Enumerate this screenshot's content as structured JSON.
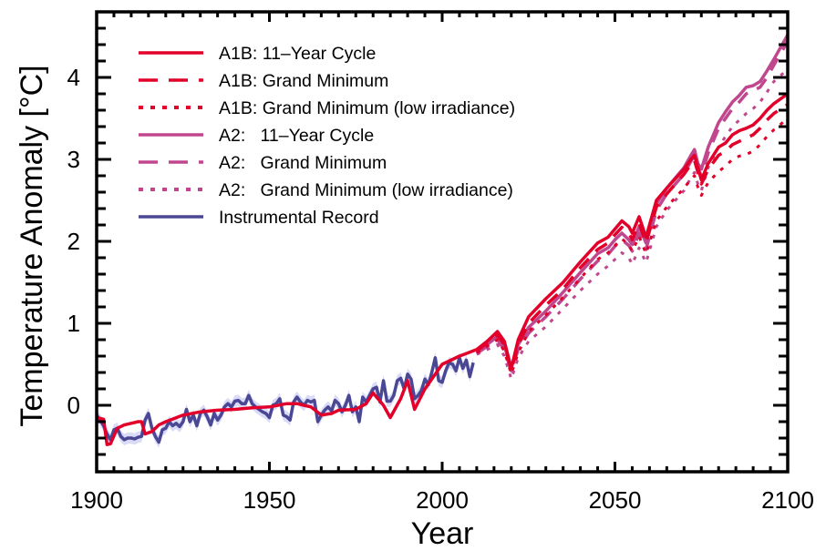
{
  "chart_data": {
    "type": "line",
    "title": "",
    "xlabel": "Year",
    "ylabel": "Temperature Anomaly [°C]",
    "xlim": [
      1900,
      2100
    ],
    "ylim": [
      -0.8,
      4.8
    ],
    "xticks": [
      1900,
      1950,
      2000,
      2050,
      2100
    ],
    "xtick_labels": [
      "1900",
      "1950",
      "2000",
      "2050",
      "2100"
    ],
    "x_minor_step": 5,
    "yticks": [
      0,
      1,
      2,
      3,
      4
    ],
    "ytick_labels": [
      "0",
      "1",
      "2",
      "3",
      "4"
    ],
    "y_minor_step": 0.2,
    "grid": false,
    "legend_position": "top-left",
    "colors": {
      "a1b": "#E2002A",
      "a2": "#C0478E",
      "instrumental": "#4A4794",
      "instrumental_band": "#B9BDF0"
    },
    "series": [
      {
        "name": "A1B: 11–Year Cycle",
        "color_key": "a1b",
        "style": "solid",
        "x": [
          1900,
          1902,
          1903,
          1904,
          1906,
          1908,
          1910,
          1912,
          1913,
          1914,
          1916,
          1918,
          1920,
          1925,
          1930,
          1935,
          1940,
          1945,
          1950,
          1955,
          1958,
          1960,
          1962,
          1965,
          1968,
          1970,
          1975,
          1978,
          1980,
          1983,
          1985,
          1988,
          1990,
          1992,
          1995,
          2000,
          2005,
          2010,
          2013,
          2016,
          2018,
          2020,
          2022,
          2025,
          2030,
          2035,
          2040,
          2045,
          2048,
          2050,
          2052,
          2054,
          2055,
          2057,
          2059,
          2062,
          2065,
          2070,
          2072,
          2073,
          2074,
          2075,
          2077,
          2080,
          2082,
          2084,
          2086,
          2088,
          2090,
          2092,
          2094,
          2096,
          2100
        ],
        "y": [
          -0.15,
          -0.17,
          -0.48,
          -0.47,
          -0.28,
          -0.24,
          -0.22,
          -0.2,
          -0.2,
          -0.35,
          -0.32,
          -0.24,
          -0.2,
          -0.12,
          -0.08,
          -0.06,
          -0.05,
          -0.03,
          -0.02,
          0.02,
          0.02,
          0.0,
          -0.02,
          -0.12,
          -0.1,
          -0.06,
          -0.05,
          0.02,
          0.15,
          0.0,
          -0.15,
          0.08,
          0.3,
          -0.05,
          0.2,
          0.5,
          0.6,
          0.68,
          0.78,
          0.9,
          0.78,
          0.45,
          0.8,
          1.08,
          1.3,
          1.5,
          1.75,
          1.98,
          2.05,
          2.15,
          2.25,
          2.18,
          2.1,
          2.3,
          2.05,
          2.5,
          2.65,
          2.88,
          3.0,
          3.05,
          2.9,
          2.75,
          2.95,
          3.15,
          3.2,
          3.3,
          3.35,
          3.38,
          3.42,
          3.5,
          3.6,
          3.68,
          3.8
        ]
      },
      {
        "name": "A1B: Grand Minimum",
        "color_key": "a1b",
        "style": "dashed",
        "x": [
          2010,
          2013,
          2016,
          2018,
          2020,
          2022,
          2025,
          2030,
          2035,
          2040,
          2045,
          2048,
          2050,
          2052,
          2054,
          2055,
          2057,
          2059,
          2062,
          2065,
          2070,
          2072,
          2073,
          2074,
          2075,
          2077,
          2080,
          2082,
          2084,
          2086,
          2088,
          2090,
          2092,
          2094,
          2096,
          2100
        ],
        "y": [
          0.66,
          0.76,
          0.86,
          0.74,
          0.43,
          0.74,
          1.0,
          1.22,
          1.42,
          1.68,
          1.9,
          1.98,
          2.08,
          2.17,
          2.1,
          2.02,
          2.22,
          1.98,
          2.42,
          2.58,
          2.82,
          2.94,
          2.99,
          2.84,
          2.7,
          2.88,
          3.05,
          3.1,
          3.18,
          3.22,
          3.26,
          3.3,
          3.38,
          3.48,
          3.56,
          3.67
        ]
      },
      {
        "name": "A1B: Grand Minimum (low irradiance)",
        "color_key": "a1b",
        "style": "dotted",
        "x": [
          2010,
          2013,
          2016,
          2018,
          2020,
          2022,
          2025,
          2030,
          2035,
          2040,
          2045,
          2048,
          2050,
          2052,
          2054,
          2055,
          2057,
          2059,
          2062,
          2065,
          2070,
          2072,
          2073,
          2074,
          2075,
          2077,
          2080,
          2082,
          2084,
          2086,
          2088,
          2090,
          2092,
          2094,
          2096,
          2100
        ],
        "y": [
          0.64,
          0.72,
          0.8,
          0.66,
          0.38,
          0.64,
          0.9,
          1.1,
          1.32,
          1.55,
          1.78,
          1.86,
          1.95,
          2.03,
          1.96,
          1.88,
          2.06,
          1.85,
          2.25,
          2.42,
          2.65,
          2.76,
          2.8,
          2.66,
          2.56,
          2.72,
          2.85,
          2.92,
          3.0,
          3.04,
          3.06,
          3.1,
          3.18,
          3.28,
          3.36,
          3.5
        ]
      },
      {
        "name": "A2:   11–Year Cycle",
        "color_key": "a2",
        "style": "solid",
        "x": [
          2010,
          2013,
          2016,
          2018,
          2020,
          2022,
          2025,
          2030,
          2035,
          2040,
          2045,
          2048,
          2050,
          2052,
          2054,
          2055,
          2057,
          2059,
          2062,
          2065,
          2070,
          2072,
          2073,
          2074,
          2075,
          2077,
          2080,
          2082,
          2084,
          2086,
          2088,
          2090,
          2092,
          2094,
          2096,
          2100
        ],
        "y": [
          0.64,
          0.74,
          0.84,
          0.72,
          0.46,
          0.74,
          0.95,
          1.15,
          1.38,
          1.62,
          1.85,
          1.92,
          2.02,
          2.1,
          2.02,
          1.96,
          2.18,
          1.98,
          2.46,
          2.65,
          2.9,
          3.05,
          3.12,
          2.95,
          2.88,
          3.15,
          3.45,
          3.58,
          3.7,
          3.78,
          3.88,
          3.9,
          3.95,
          4.08,
          4.22,
          4.52
        ]
      },
      {
        "name": "A2:   Grand Minimum",
        "color_key": "a2",
        "style": "dashed",
        "x": [
          2010,
          2013,
          2016,
          2018,
          2020,
          2022,
          2025,
          2030,
          2035,
          2040,
          2045,
          2048,
          2050,
          2052,
          2054,
          2055,
          2057,
          2059,
          2062,
          2065,
          2070,
          2072,
          2073,
          2074,
          2075,
          2077,
          2080,
          2082,
          2084,
          2086,
          2088,
          2090,
          2092,
          2094,
          2096,
          2100
        ],
        "y": [
          0.63,
          0.72,
          0.8,
          0.68,
          0.42,
          0.68,
          0.88,
          1.08,
          1.3,
          1.54,
          1.76,
          1.84,
          1.94,
          2.02,
          1.95,
          1.88,
          2.1,
          1.9,
          2.38,
          2.58,
          2.82,
          2.98,
          3.04,
          2.88,
          2.8,
          3.08,
          3.38,
          3.5,
          3.62,
          3.7,
          3.8,
          3.84,
          3.88,
          4.0,
          4.15,
          4.44
        ]
      },
      {
        "name": "A2:   Grand Minimum (low irradiance)",
        "color_key": "a2",
        "style": "dotted",
        "x": [
          2010,
          2013,
          2016,
          2018,
          2020,
          2022,
          2025,
          2030,
          2035,
          2040,
          2045,
          2048,
          2050,
          2052,
          2054,
          2055,
          2057,
          2059,
          2062,
          2065,
          2070,
          2072,
          2073,
          2074,
          2075,
          2077,
          2080,
          2082,
          2084,
          2086,
          2088,
          2090,
          2092,
          2094,
          2096,
          2100
        ],
        "y": [
          0.62,
          0.68,
          0.74,
          0.6,
          0.32,
          0.58,
          0.78,
          0.96,
          1.18,
          1.4,
          1.6,
          1.7,
          1.78,
          1.86,
          1.8,
          1.72,
          1.92,
          1.74,
          2.18,
          2.38,
          2.62,
          2.78,
          2.84,
          2.7,
          2.62,
          2.9,
          3.15,
          3.28,
          3.4,
          3.48,
          3.56,
          3.62,
          3.7,
          3.82,
          3.95,
          4.1
        ]
      },
      {
        "name": "Instrumental Record",
        "color_key": "instrumental",
        "style": "solid",
        "x": [
          1900,
          1901,
          1902,
          1903,
          1904,
          1905,
          1906,
          1907,
          1908,
          1909,
          1910,
          1911,
          1912,
          1913,
          1914,
          1915,
          1916,
          1917,
          1918,
          1919,
          1920,
          1921,
          1922,
          1923,
          1924,
          1925,
          1926,
          1927,
          1928,
          1929,
          1930,
          1931,
          1932,
          1933,
          1934,
          1935,
          1936,
          1937,
          1938,
          1939,
          1940,
          1941,
          1942,
          1943,
          1944,
          1945,
          1946,
          1947,
          1948,
          1949,
          1950,
          1951,
          1952,
          1953,
          1954,
          1955,
          1956,
          1957,
          1958,
          1959,
          1960,
          1961,
          1962,
          1963,
          1964,
          1965,
          1966,
          1967,
          1968,
          1969,
          1970,
          1971,
          1972,
          1973,
          1974,
          1975,
          1976,
          1977,
          1978,
          1979,
          1980,
          1981,
          1982,
          1983,
          1984,
          1985,
          1986,
          1987,
          1988,
          1989,
          1990,
          1991,
          1992,
          1993,
          1994,
          1995,
          1996,
          1997,
          1998,
          1999,
          2000,
          2001,
          2002,
          2003,
          2004,
          2005,
          2006,
          2007,
          2008,
          2009
        ],
        "y": [
          -0.12,
          -0.18,
          -0.25,
          -0.35,
          -0.42,
          -0.3,
          -0.28,
          -0.38,
          -0.42,
          -0.4,
          -0.4,
          -0.41,
          -0.39,
          -0.38,
          -0.18,
          -0.1,
          -0.28,
          -0.38,
          -0.45,
          -0.3,
          -0.28,
          -0.2,
          -0.25,
          -0.22,
          -0.26,
          -0.2,
          -0.05,
          -0.2,
          -0.12,
          -0.25,
          -0.1,
          -0.06,
          -0.14,
          -0.24,
          -0.1,
          -0.18,
          -0.12,
          -0.02,
          0.02,
          -0.02,
          0.05,
          0.06,
          0.02,
          0.02,
          0.12,
          0.02,
          -0.02,
          -0.05,
          -0.08,
          -0.1,
          -0.15,
          0.0,
          0.02,
          0.08,
          -0.12,
          -0.14,
          -0.18,
          0.04,
          0.1,
          0.04,
          0.0,
          0.06,
          0.04,
          0.06,
          -0.2,
          -0.12,
          -0.06,
          -0.02,
          -0.07,
          0.06,
          0.02,
          -0.08,
          0.0,
          0.12,
          -0.08,
          -0.02,
          -0.2,
          0.1,
          0.04,
          0.12,
          0.2,
          0.22,
          0.04,
          0.3,
          0.05,
          0.05,
          0.12,
          0.3,
          0.33,
          0.2,
          0.38,
          0.32,
          0.08,
          0.12,
          0.18,
          0.32,
          0.25,
          0.4,
          0.58,
          0.3,
          0.28,
          0.42,
          0.52,
          0.5,
          0.42,
          0.58,
          0.45,
          0.55,
          0.35,
          0.52
        ]
      }
    ]
  }
}
